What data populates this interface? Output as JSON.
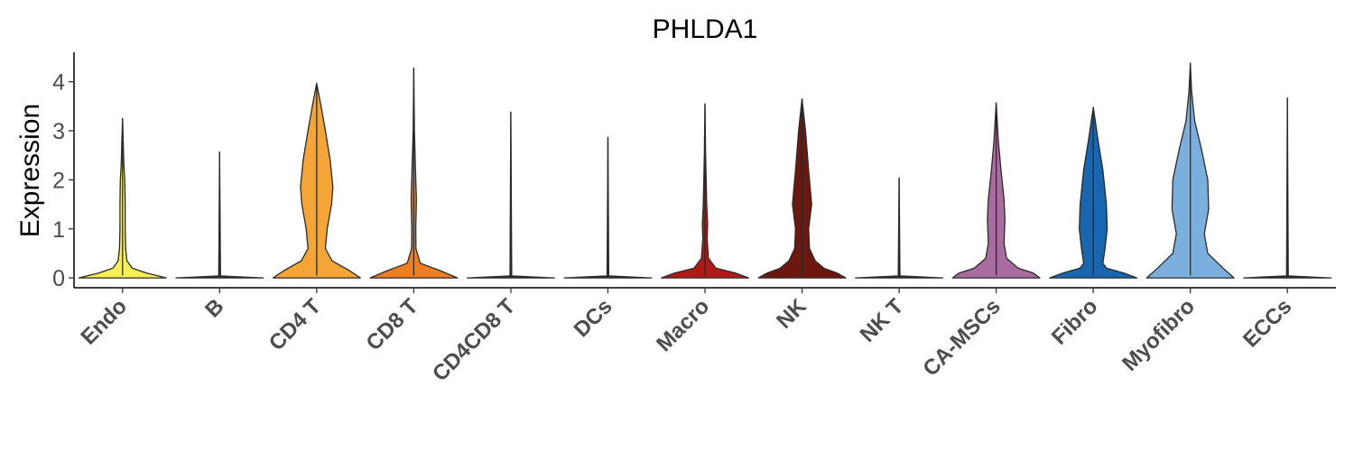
{
  "chart_data": {
    "type": "violin",
    "title": "PHLDA1",
    "xlabel": "",
    "ylabel": "Expression",
    "ylim": [
      -0.2,
      4.6
    ],
    "yticks": [
      0,
      1,
      2,
      3,
      4
    ],
    "grid": false,
    "legend": "none",
    "categories": [
      "Endo",
      "B",
      "CD4 T",
      "CD8 T",
      "CD4CD8 T",
      "DCs",
      "Macro",
      "NK",
      "NK T",
      "CA-MSCs",
      "Fibro",
      "Myofibro",
      "ECCs"
    ],
    "colors": [
      "#f7f055",
      "#2f2f2f",
      "#f4a535",
      "#ef7e22",
      "#2f2f2f",
      "#2f2f2f",
      "#b01916",
      "#6e170e",
      "#2f2f2f",
      "#a96c9f",
      "#1865b0",
      "#7aafde",
      "#2f2f2f"
    ],
    "max_values": [
      3.25,
      2.57,
      3.97,
      4.28,
      3.38,
      2.87,
      3.55,
      3.65,
      2.04,
      3.57,
      3.48,
      4.38,
      3.67
    ],
    "profiles": [
      [
        [
          0,
          1.0
        ],
        [
          0.1,
          0.55
        ],
        [
          0.2,
          0.22
        ],
        [
          0.35,
          0.1
        ],
        [
          0.6,
          0.07
        ],
        [
          1.0,
          0.06
        ],
        [
          1.5,
          0.06
        ],
        [
          2.0,
          0.05
        ],
        [
          2.3,
          0.03
        ],
        [
          2.8,
          0.015
        ],
        [
          3.25,
          0
        ]
      ],
      [
        [
          0,
          1.0
        ],
        [
          0.04,
          0.02
        ],
        [
          2.57,
          0
        ]
      ],
      [
        [
          0,
          1.0
        ],
        [
          0.15,
          0.75
        ],
        [
          0.35,
          0.35
        ],
        [
          0.6,
          0.2
        ],
        [
          1.0,
          0.24
        ],
        [
          1.5,
          0.34
        ],
        [
          1.85,
          0.37
        ],
        [
          2.4,
          0.31
        ],
        [
          3.0,
          0.2
        ],
        [
          3.5,
          0.1
        ],
        [
          3.97,
          0
        ]
      ],
      [
        [
          0,
          1.0
        ],
        [
          0.15,
          0.6
        ],
        [
          0.3,
          0.15
        ],
        [
          0.6,
          0.05
        ],
        [
          1.0,
          0.045
        ],
        [
          1.6,
          0.06
        ],
        [
          2.2,
          0.04
        ],
        [
          3.0,
          0.015
        ],
        [
          4.28,
          0
        ]
      ],
      [
        [
          0,
          1.0
        ],
        [
          0.04,
          0.02
        ],
        [
          3.38,
          0
        ]
      ],
      [
        [
          0,
          1.0
        ],
        [
          0.04,
          0.02
        ],
        [
          2.87,
          0
        ]
      ],
      [
        [
          0,
          1.0
        ],
        [
          0.1,
          0.7
        ],
        [
          0.2,
          0.25
        ],
        [
          0.4,
          0.08
        ],
        [
          0.8,
          0.05
        ],
        [
          1.1,
          0.06
        ],
        [
          1.5,
          0.04
        ],
        [
          2.5,
          0.015
        ],
        [
          3.55,
          0
        ]
      ],
      [
        [
          0,
          1.0
        ],
        [
          0.1,
          0.8
        ],
        [
          0.2,
          0.5
        ],
        [
          0.35,
          0.3
        ],
        [
          0.6,
          0.17
        ],
        [
          1.0,
          0.15
        ],
        [
          1.5,
          0.22
        ],
        [
          2.2,
          0.15
        ],
        [
          3.0,
          0.08
        ],
        [
          3.65,
          0
        ]
      ],
      [
        [
          0,
          1.0
        ],
        [
          0.04,
          0.02
        ],
        [
          2.04,
          0
        ]
      ],
      [
        [
          0,
          1.0
        ],
        [
          0.1,
          0.85
        ],
        [
          0.2,
          0.5
        ],
        [
          0.4,
          0.24
        ],
        [
          0.7,
          0.18
        ],
        [
          1.2,
          0.2
        ],
        [
          1.6,
          0.18
        ],
        [
          2.2,
          0.11
        ],
        [
          2.8,
          0.05
        ],
        [
          3.57,
          0
        ]
      ],
      [
        [
          0,
          1.0
        ],
        [
          0.1,
          0.7
        ],
        [
          0.2,
          0.3
        ],
        [
          0.3,
          0.22
        ],
        [
          0.6,
          0.27
        ],
        [
          1.0,
          0.32
        ],
        [
          1.5,
          0.3
        ],
        [
          2.2,
          0.22
        ],
        [
          2.8,
          0.11
        ],
        [
          3.48,
          0
        ]
      ],
      [
        [
          0,
          1.0
        ],
        [
          0.2,
          0.75
        ],
        [
          0.5,
          0.4
        ],
        [
          0.9,
          0.32
        ],
        [
          1.4,
          0.42
        ],
        [
          2.0,
          0.4
        ],
        [
          2.6,
          0.26
        ],
        [
          3.2,
          0.1
        ],
        [
          3.8,
          0.03
        ],
        [
          4.38,
          0
        ]
      ],
      [
        [
          0,
          1.0
        ],
        [
          0.04,
          0.02
        ],
        [
          3.67,
          0
        ]
      ]
    ]
  }
}
